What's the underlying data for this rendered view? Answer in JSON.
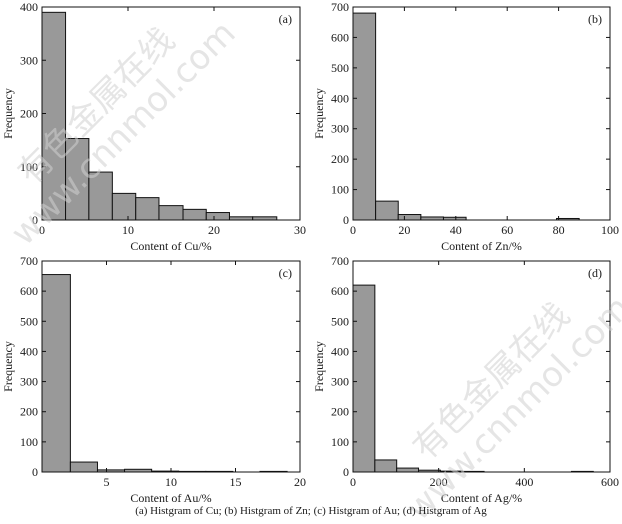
{
  "caption": "(a) Histgram of Cu; (b) Histgram of Zn; (c) Histgram of Au; (d) Histgram of Ag",
  "watermark": {
    "lines": [
      "有色金属在线",
      "www.cnnmol.com"
    ]
  },
  "colors": {
    "bar_fill": "#999999",
    "bar_stroke": "#111111",
    "axis": "#111111"
  },
  "chart_data": [
    {
      "type": "bar",
      "panel_label": "(a)",
      "xlabel": "Content of Cu/%",
      "ylabel": "Frequency",
      "xlim": [
        0,
        30
      ],
      "ylim": [
        0,
        400
      ],
      "xticks": [
        0,
        10,
        20,
        30
      ],
      "yticks": [
        0,
        100,
        200,
        300,
        400
      ],
      "bin_edges": [
        0,
        2.74,
        5.45,
        8.18,
        10.9,
        13.6,
        16.4,
        19.1,
        21.8,
        24.5,
        27.3
      ],
      "values": [
        390,
        153,
        90,
        50,
        42,
        27,
        20,
        14,
        6,
        6
      ]
    },
    {
      "type": "bar",
      "panel_label": "(b)",
      "xlabel": "Content of Zn/%",
      "ylabel": "Frequency",
      "xlim": [
        0,
        100
      ],
      "ylim": [
        0,
        700
      ],
      "xticks": [
        0,
        20,
        40,
        60,
        80,
        100
      ],
      "yticks": [
        0,
        100,
        200,
        300,
        400,
        500,
        600,
        700
      ],
      "bin_edges": [
        0,
        8.8,
        17.6,
        26.4,
        35.2,
        44,
        52.8,
        61.6,
        70.4,
        79.2,
        88
      ],
      "values": [
        680,
        62,
        18,
        10,
        9,
        0,
        0,
        0,
        0,
        5
      ]
    },
    {
      "type": "bar",
      "panel_label": "(c)",
      "xlabel": "Content of Au/%",
      "ylabel": "Frequency",
      "xlim": [
        0,
        20
      ],
      "ylim": [
        0,
        700
      ],
      "xticks": [
        5,
        10,
        15,
        20
      ],
      "yticks": [
        0,
        100,
        200,
        300,
        400,
        500,
        600,
        700
      ],
      "bin_edges": [
        0,
        2.2,
        4.3,
        6.4,
        8.5,
        10.6,
        12.7,
        14.8,
        16.9,
        19.0
      ],
      "values": [
        655,
        33,
        7,
        9,
        3,
        2,
        2,
        0,
        2
      ]
    },
    {
      "type": "bar",
      "panel_label": "(d)",
      "xlabel": "Content of Ag/%",
      "ylabel": "Frequency",
      "xlim": [
        0,
        600
      ],
      "ylim": [
        0,
        700
      ],
      "xticks": [
        0,
        200,
        400,
        600
      ],
      "yticks": [
        0,
        100,
        200,
        300,
        400,
        500,
        600,
        700
      ],
      "bin_edges": [
        0,
        51,
        102,
        153,
        204,
        255,
        306,
        357,
        408,
        459,
        510,
        561
      ],
      "values": [
        620,
        40,
        13,
        6,
        3,
        2,
        0,
        0,
        0,
        0,
        2
      ]
    }
  ]
}
